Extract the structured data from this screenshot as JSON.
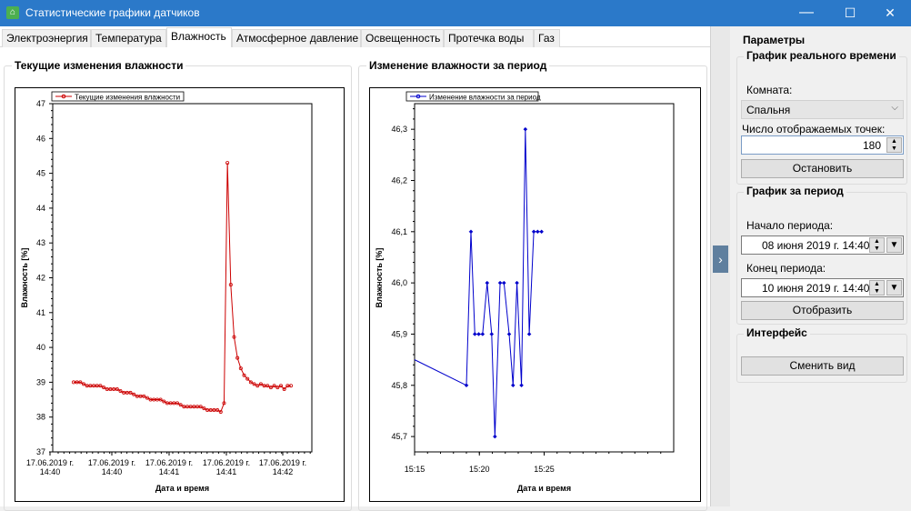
{
  "window": {
    "title": "Статистические графики датчиков",
    "minimize": "—",
    "maximize": "☐",
    "close": "✕"
  },
  "tabs": [
    "Электроэнергия",
    "Температура",
    "Влажность",
    "Атмосферное давление",
    "Освещенность",
    "Протечка воды",
    "Газ"
  ],
  "active_tab": "Влажность",
  "left_panel": {
    "title": "Текущие изменения влажности"
  },
  "right_panel": {
    "title": "Изменение влажности за период"
  },
  "chart_data": [
    {
      "type": "line",
      "legend": "Текущие изменения влажности",
      "xlabel": "Дата и время",
      "ylabel": "Влажность [%]",
      "ylim": [
        37,
        47
      ],
      "yticks": [
        "37",
        "38",
        "39",
        "40",
        "41",
        "42",
        "43",
        "44",
        "45",
        "46",
        "47"
      ],
      "xticks": [
        [
          "17.06.2019 г.",
          "14:40"
        ],
        [
          "17.06.2019 г.",
          "14:40"
        ],
        [
          "17.06.2019 г.",
          "14:41"
        ],
        [
          "17.06.2019 г.",
          "14:41"
        ],
        [
          "17.06.2019 г.",
          "14:42"
        ]
      ],
      "color": "#cc0000",
      "values": [
        39.0,
        39.0,
        39.0,
        38.95,
        38.9,
        38.9,
        38.9,
        38.9,
        38.9,
        38.85,
        38.8,
        38.8,
        38.8,
        38.8,
        38.75,
        38.7,
        38.7,
        38.7,
        38.65,
        38.6,
        38.6,
        38.6,
        38.55,
        38.5,
        38.5,
        38.5,
        38.5,
        38.45,
        38.4,
        38.4,
        38.4,
        38.4,
        38.35,
        38.3,
        38.3,
        38.3,
        38.3,
        38.3,
        38.3,
        38.25,
        38.2,
        38.2,
        38.2,
        38.2,
        38.15,
        38.4,
        45.3,
        41.8,
        40.3,
        39.7,
        39.4,
        39.2,
        39.1,
        39.0,
        38.95,
        38.9,
        38.95,
        38.9,
        38.9,
        38.85,
        38.9,
        38.85,
        38.9,
        38.8,
        38.9,
        38.9
      ]
    },
    {
      "type": "line",
      "legend": "Изменение влажности за период",
      "xlabel": "Дата и время",
      "ylabel": "Влажность [%]",
      "ylim": [
        45.67,
        46.35
      ],
      "yticks": [
        "45,7",
        "45,8",
        "45,9",
        "46,0",
        "46,1",
        "46,2",
        "46,3"
      ],
      "ytick_values": [
        45.7,
        45.8,
        45.9,
        46.0,
        46.1,
        46.2,
        46.3
      ],
      "xlim": [
        15.0,
        35.0
      ],
      "xticks": [
        "15:15",
        "15:20",
        "15:25"
      ],
      "xtick_values": [
        15,
        20,
        25
      ],
      "color": "#0000cc",
      "points": [
        [
          19.0,
          45.8
        ],
        [
          19.35,
          46.1
        ],
        [
          19.65,
          45.9
        ],
        [
          19.95,
          45.9
        ],
        [
          20.25,
          45.9
        ],
        [
          20.6,
          46.0
        ],
        [
          20.95,
          45.9
        ],
        [
          21.2,
          45.7
        ],
        [
          21.6,
          46.0
        ],
        [
          21.9,
          46.0
        ],
        [
          22.3,
          45.9
        ],
        [
          22.6,
          45.8
        ],
        [
          22.9,
          46.0
        ],
        [
          23.25,
          45.8
        ],
        [
          23.55,
          46.3
        ],
        [
          23.85,
          45.9
        ],
        [
          24.2,
          46.1
        ],
        [
          24.5,
          46.1
        ],
        [
          24.8,
          46.1
        ]
      ],
      "start_point": [
        15.0,
        45.85
      ]
    }
  ],
  "side": {
    "header": "Параметры",
    "realtime": {
      "title": "График реального времени",
      "room_label": "Комната:",
      "room_value": "Спальня",
      "points_label": "Число отображаемых точек:",
      "points_value": "180",
      "stop_button": "Остановить"
    },
    "period": {
      "title": "График за период",
      "start_label": "Начало периода:",
      "start_value": "08 июня 2019 г. 14:40",
      "end_label": "Конец периода:",
      "end_value": "10 июня 2019 г. 14:40",
      "show_button": "Отобразить"
    },
    "interface": {
      "title": "Интерфейс",
      "switch_button": "Сменить вид"
    }
  }
}
